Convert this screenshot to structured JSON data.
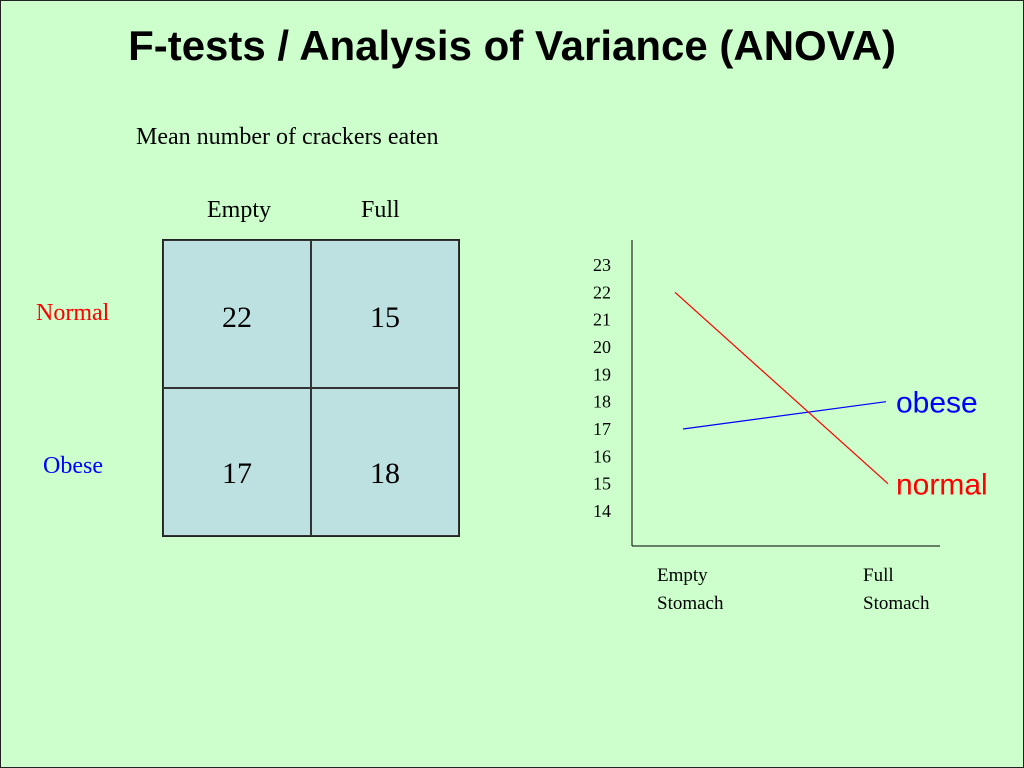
{
  "title": "F-tests / Analysis of Variance (ANOVA)",
  "subtitle": "Mean number of crackers eaten",
  "table": {
    "columns": [
      "Empty",
      "Full"
    ],
    "rows": [
      {
        "label": "Normal",
        "color": "#ff0000",
        "values": [
          "22",
          "15"
        ]
      },
      {
        "label": "Obese",
        "color": "#0000ff",
        "values": [
          "17",
          "18"
        ]
      }
    ]
  },
  "chart_data": {
    "type": "line",
    "categories": [
      "Empty Stomach",
      "Full Stomach"
    ],
    "category_lines": [
      [
        "Empty",
        "Stomach"
      ],
      [
        "Full",
        "Stomach"
      ]
    ],
    "y_ticks": [
      23,
      22,
      21,
      20,
      19,
      18,
      17,
      16,
      15,
      14
    ],
    "ylim": [
      13,
      24
    ],
    "series": [
      {
        "name": "obese",
        "color": "#0000ff",
        "values": [
          17,
          18
        ]
      },
      {
        "name": "normal",
        "color": "#ff0000",
        "values": [
          22,
          15
        ]
      }
    ],
    "legend_placement": "right, at line ends",
    "grid": false
  }
}
